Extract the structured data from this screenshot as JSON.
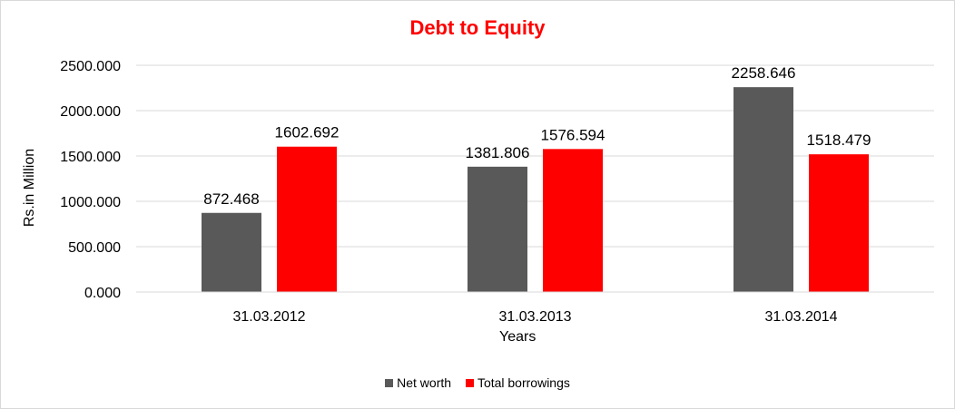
{
  "chart_data": {
    "type": "bar",
    "title": "Debt to Equity",
    "xlabel": "Years",
    "ylabel": "Rs.in Million",
    "categories": [
      "31.03.2012",
      "31.03.2013",
      "31.03.2014"
    ],
    "series": [
      {
        "name": "Net worth",
        "values": [
          872.468,
          1381.806,
          2258.646
        ],
        "color": "#595959"
      },
      {
        "name": "Total borrowings",
        "values": [
          1602.692,
          1576.594,
          1518.479
        ],
        "color": "#ff0000"
      }
    ],
    "ylim": [
      0,
      2500
    ],
    "yticks": [
      "0.000",
      "500.000",
      "1000.000",
      "1500.000",
      "2000.000",
      "2500.000"
    ],
    "data_labels": [
      [
        "872.468",
        "1381.806",
        "2258.646"
      ],
      [
        "1602.692",
        "1576.594",
        "1518.479"
      ]
    ],
    "grid": true,
    "legend": "bottom"
  }
}
